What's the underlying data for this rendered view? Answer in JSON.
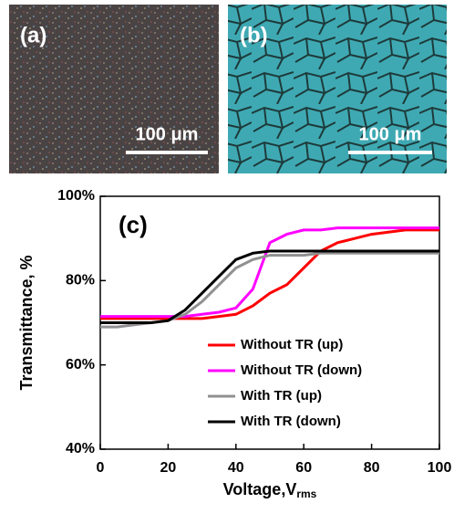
{
  "panels": {
    "a_label": "(a)",
    "b_label": "(b)",
    "a_scale": "100 μm",
    "b_scale": "100 μm"
  },
  "chart_data": {
    "type": "line",
    "panel_label": "(c)",
    "x_label": "Voltage,V",
    "x_label_sub": "rms",
    "y_label": "Transmittance, %",
    "x": [
      0,
      5,
      10,
      15,
      20,
      25,
      30,
      35,
      40,
      45,
      50,
      55,
      60,
      65,
      70,
      75,
      80,
      85,
      90,
      95,
      100
    ],
    "series": [
      {
        "name": "Without TR (up)",
        "color": "#ff0000",
        "values": [
          71,
          71,
          71,
          71,
          71,
          71,
          71,
          71.5,
          72,
          74,
          77,
          79,
          83,
          87,
          89,
          90,
          91,
          91.5,
          92,
          92,
          92
        ]
      },
      {
        "name": "Without TR (down)",
        "color": "#ff00ff",
        "values": [
          71.5,
          71.5,
          71.5,
          71.5,
          71.5,
          71.5,
          72,
          72.5,
          73.5,
          78,
          89,
          91,
          92,
          92,
          92.5,
          92.5,
          92.5,
          92.5,
          92.5,
          92.5,
          92.5
        ]
      },
      {
        "name": "With TR (up)",
        "color": "#909090",
        "values": [
          69,
          69,
          69.5,
          70,
          70.5,
          72,
          75,
          79,
          83,
          85,
          86,
          86,
          86,
          86.5,
          86.5,
          86.5,
          86.5,
          86.5,
          86.5,
          86.5,
          86.5
        ]
      },
      {
        "name": "With TR (down)",
        "color": "#000000",
        "values": [
          70,
          70,
          70,
          70,
          70.5,
          73,
          77,
          81,
          85,
          86.5,
          87,
          87,
          87,
          87,
          87,
          87,
          87,
          87,
          87,
          87,
          87
        ]
      }
    ],
    "xlim": [
      0,
      100
    ],
    "xticks": [
      0,
      20,
      40,
      60,
      80,
      100
    ],
    "ylim": [
      40,
      100
    ],
    "yticks": [
      {
        "value": 40,
        "label": "40%"
      },
      {
        "value": 60,
        "label": "60%"
      },
      {
        "value": 80,
        "label": "80%"
      },
      {
        "value": 100,
        "label": "100%"
      }
    ]
  }
}
